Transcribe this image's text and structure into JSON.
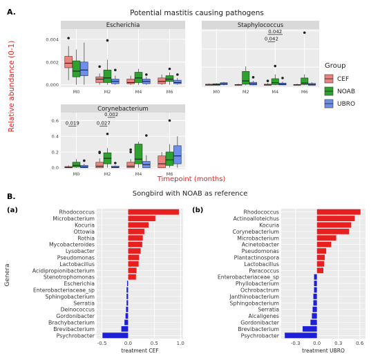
{
  "panel_a": {
    "label": "A.",
    "title": "Potential mastitis causing pathogens",
    "y_axis_label": "Relative abundance (0-1)",
    "x_axis_label": "Timepoint (months)",
    "legend": {
      "title": "Group",
      "items": [
        {
          "name": "CEF",
          "color": "#E8857E"
        },
        {
          "name": "NOAB",
          "color": "#2FA12F"
        },
        {
          "name": "UBRO",
          "color": "#6E8FE8"
        }
      ]
    }
  },
  "panel_b": {
    "label": "B.",
    "title": "Songbird with NOAB as reference",
    "y_axis_label": "Genera"
  },
  "chart_data": [
    {
      "type": "box",
      "title": "Escherichia",
      "categories": [
        "M0",
        "M2",
        "M4",
        "M6"
      ],
      "yticks": [
        "0.000",
        "0.002",
        "0.004"
      ],
      "ylim": [
        -0.0002,
        0.0049
      ],
      "groups": [
        "CEF",
        "NOAB",
        "UBRO"
      ],
      "boxes": [
        {
          "x": "M0",
          "group": "CEF",
          "q1": 0.0015,
          "median": 0.0019,
          "q3": 0.0025,
          "low": 0.0004,
          "high": 0.0034,
          "outliers": [
            0.0041
          ]
        },
        {
          "x": "M0",
          "group": "NOAB",
          "q1": 0.0007,
          "median": 0.0012,
          "q3": 0.0021,
          "low": 0.0,
          "high": 0.0031,
          "outliers": []
        },
        {
          "x": "M0",
          "group": "UBRO",
          "q1": 0.0008,
          "median": 0.0013,
          "q3": 0.002,
          "low": 0.0,
          "high": 0.0037,
          "outliers": []
        },
        {
          "x": "M2",
          "group": "CEF",
          "q1": 0.0002,
          "median": 0.0005,
          "q3": 0.0007,
          "low": 0.0,
          "high": 0.001,
          "outliers": [
            0.0016
          ]
        },
        {
          "x": "M2",
          "group": "NOAB",
          "q1": 0.0002,
          "median": 0.0006,
          "q3": 0.0013,
          "low": 0.0,
          "high": 0.0022,
          "outliers": [
            0.0039
          ]
        },
        {
          "x": "M2",
          "group": "UBRO",
          "q1": 0.0001,
          "median": 0.0003,
          "q3": 0.0005,
          "low": 0.0,
          "high": 0.0008,
          "outliers": [
            0.0013
          ]
        },
        {
          "x": "M4",
          "group": "CEF",
          "q1": 0.0001,
          "median": 0.0002,
          "q3": 0.0005,
          "low": 0.0,
          "high": 0.0008,
          "outliers": []
        },
        {
          "x": "M4",
          "group": "NOAB",
          "q1": 0.0002,
          "median": 0.0006,
          "q3": 0.0011,
          "low": 0.0,
          "high": 0.0014,
          "outliers": []
        },
        {
          "x": "M4",
          "group": "UBRO",
          "q1": 0.0001,
          "median": 0.0003,
          "q3": 0.0005,
          "low": 0.0,
          "high": 0.0007,
          "outliers": [
            0.0009
          ]
        },
        {
          "x": "M6",
          "group": "CEF",
          "q1": 0.0001,
          "median": 0.0003,
          "q3": 0.0006,
          "low": 0.0,
          "high": 0.0009,
          "outliers": []
        },
        {
          "x": "M6",
          "group": "NOAB",
          "q1": 0.0003,
          "median": 0.0005,
          "q3": 0.0008,
          "low": 0.0,
          "high": 0.0011,
          "outliers": [
            0.0014
          ]
        },
        {
          "x": "M6",
          "group": "UBRO",
          "q1": 0.0001,
          "median": 0.0002,
          "q3": 0.0004,
          "low": 0.0,
          "high": 0.0006,
          "outliers": [
            0.0009
          ]
        }
      ],
      "annotations": []
    },
    {
      "type": "box",
      "title": "Staphylococcus",
      "categories": [
        "M0",
        "M2",
        "M4",
        "M6"
      ],
      "yticks": [],
      "ylim": [
        -0.005,
        0.155
      ],
      "groups": [
        "CEF",
        "NOAB",
        "UBRO"
      ],
      "boxes": [
        {
          "x": "M0",
          "group": "CEF",
          "q1": 0.0,
          "median": 0.001,
          "q3": 0.003,
          "low": 0.0,
          "high": 0.005,
          "outliers": []
        },
        {
          "x": "M0",
          "group": "NOAB",
          "q1": 0.0,
          "median": 0.002,
          "q3": 0.004,
          "low": 0.0,
          "high": 0.006,
          "outliers": []
        },
        {
          "x": "M0",
          "group": "UBRO",
          "q1": 0.002,
          "median": 0.004,
          "q3": 0.007,
          "low": 0.0,
          "high": 0.009,
          "outliers": []
        },
        {
          "x": "M2",
          "group": "CEF",
          "q1": 0.0,
          "median": 0.001,
          "q3": 0.002,
          "low": 0.0,
          "high": 0.004,
          "outliers": []
        },
        {
          "x": "M2",
          "group": "NOAB",
          "q1": 0.003,
          "median": 0.012,
          "q3": 0.038,
          "low": 0.0,
          "high": 0.052,
          "outliers": []
        },
        {
          "x": "M2",
          "group": "UBRO",
          "q1": 0.001,
          "median": 0.004,
          "q3": 0.008,
          "low": 0.0,
          "high": 0.012,
          "outliers": [
            0.022
          ]
        },
        {
          "x": "M4",
          "group": "CEF",
          "q1": 0.0,
          "median": 0.001,
          "q3": 0.003,
          "low": 0.0,
          "high": 0.006,
          "outliers": [
            0.012
          ]
        },
        {
          "x": "M4",
          "group": "NOAB",
          "q1": 0.002,
          "median": 0.007,
          "q3": 0.018,
          "low": 0.0,
          "high": 0.03,
          "outliers": [
            0.053
          ]
        },
        {
          "x": "M4",
          "group": "UBRO",
          "q1": 0.001,
          "median": 0.003,
          "q3": 0.006,
          "low": 0.0,
          "high": 0.01,
          "outliers": [
            0.02
          ]
        },
        {
          "x": "M6",
          "group": "CEF",
          "q1": 0.0,
          "median": 0.001,
          "q3": 0.002,
          "low": 0.0,
          "high": 0.004,
          "outliers": []
        },
        {
          "x": "M6",
          "group": "NOAB",
          "q1": 0.002,
          "median": 0.006,
          "q3": 0.02,
          "low": 0.0,
          "high": 0.03,
          "outliers": [
            0.145
          ]
        },
        {
          "x": "M6",
          "group": "UBRO",
          "q1": 0.0,
          "median": 0.002,
          "q3": 0.005,
          "low": 0.0,
          "high": 0.008,
          "outliers": []
        }
      ],
      "annotations": [
        {
          "text": "0.042",
          "from": "M4:CEF",
          "to": "M4:UBRO",
          "level": 0.14
        },
        {
          "text": "0.042",
          "from": "M4:CEF",
          "to": "M4:NOAB",
          "level": 0.12
        }
      ]
    },
    {
      "type": "box",
      "title": "Corynebacterium",
      "categories": [
        "M0",
        "M2",
        "M4",
        "M6"
      ],
      "yticks": [
        "0.0",
        "0.2",
        "0.4",
        "0.6"
      ],
      "ylim": [
        -0.02,
        0.7
      ],
      "groups": [
        "CEF",
        "NOAB",
        "UBRO"
      ],
      "boxes": [
        {
          "x": "M0",
          "group": "CEF",
          "q1": 0.0,
          "median": 0.005,
          "q3": 0.015,
          "low": 0.0,
          "high": 0.03,
          "outliers": []
        },
        {
          "x": "M0",
          "group": "NOAB",
          "q1": 0.01,
          "median": 0.03,
          "q3": 0.07,
          "low": 0.0,
          "high": 0.11,
          "outliers": []
        },
        {
          "x": "M0",
          "group": "UBRO",
          "q1": 0.0,
          "median": 0.01,
          "q3": 0.03,
          "low": 0.0,
          "high": 0.05,
          "outliers": [
            0.09
          ]
        },
        {
          "x": "M2",
          "group": "CEF",
          "q1": 0.0,
          "median": 0.02,
          "q3": 0.07,
          "low": 0.0,
          "high": 0.12,
          "outliers": [
            0.19,
            0.2
          ]
        },
        {
          "x": "M2",
          "group": "NOAB",
          "q1": 0.05,
          "median": 0.12,
          "q3": 0.19,
          "low": 0.0,
          "high": 0.25,
          "outliers": [
            0.43
          ]
        },
        {
          "x": "M2",
          "group": "UBRO",
          "q1": 0.0,
          "median": 0.005,
          "q3": 0.02,
          "low": 0.0,
          "high": 0.03,
          "outliers": [
            0.06
          ]
        },
        {
          "x": "M4",
          "group": "CEF",
          "q1": 0.0,
          "median": 0.02,
          "q3": 0.07,
          "low": 0.0,
          "high": 0.11,
          "outliers": [
            0.2,
            0.23
          ]
        },
        {
          "x": "M4",
          "group": "NOAB",
          "q1": 0.05,
          "median": 0.11,
          "q3": 0.3,
          "low": 0.0,
          "high": 0.33,
          "outliers": []
        },
        {
          "x": "M4",
          "group": "UBRO",
          "q1": 0.0,
          "median": 0.04,
          "q3": 0.08,
          "low": 0.0,
          "high": 0.16,
          "outliers": [
            0.41
          ]
        },
        {
          "x": "M6",
          "group": "CEF",
          "q1": 0.0,
          "median": 0.05,
          "q3": 0.15,
          "low": 0.0,
          "high": 0.2,
          "outliers": []
        },
        {
          "x": "M6",
          "group": "NOAB",
          "q1": 0.03,
          "median": 0.1,
          "q3": 0.2,
          "low": 0.0,
          "high": 0.3,
          "outliers": [
            0.6
          ]
        },
        {
          "x": "M6",
          "group": "UBRO",
          "q1": 0.05,
          "median": 0.15,
          "q3": 0.28,
          "low": 0.0,
          "high": 0.4,
          "outliers": []
        }
      ],
      "annotations": [
        {
          "text": "0.019",
          "from": "M0:CEF",
          "to": "M0:NOAB",
          "level": 0.53
        },
        {
          "text": "0.027",
          "from": "M2:CEF",
          "to": "M2:NOAB",
          "level": 0.53
        },
        {
          "text": "0.002",
          "from": "M2:NOAB",
          "to": "M2:UBRO",
          "level": 0.64
        }
      ]
    },
    {
      "type": "bar",
      "orientation": "horizontal",
      "panel": "(a)",
      "xlabel": "treatment CEF",
      "xticks": [
        -0.5,
        0.0,
        0.5,
        1.0
      ],
      "xlim": [
        -0.6,
        1.05
      ],
      "categories": [
        "Rhodococcus",
        "Microbacterium",
        "Kocuria",
        "Ottowia",
        "Rothia",
        "Mycobacteroides",
        "Lysobacter",
        "Pseudomonas",
        "Lactobacillus",
        "Acidipropionibacterium",
        "Stenotrophomonas",
        "Escherichia",
        "Enterobacteriaceae_sp",
        "Sphingobacterium",
        "Serratia",
        "Deinococcus",
        "Gordonibacter",
        "Brachybacterium",
        "Brevibacterium",
        "Psychrobacter"
      ],
      "values": [
        0.97,
        0.52,
        0.39,
        0.31,
        0.28,
        0.27,
        0.24,
        0.21,
        0.2,
        0.16,
        0.15,
        -0.02,
        -0.03,
        -0.03,
        -0.03,
        -0.04,
        -0.05,
        -0.07,
        -0.13,
        -0.49
      ],
      "colors": {
        "positive": "#E81F1F",
        "negative": "#1F1FD6"
      }
    },
    {
      "type": "bar",
      "orientation": "horizontal",
      "panel": "(b)",
      "xlabel": "treatment UBRO",
      "xticks": [
        -0.3,
        0.0,
        0.3,
        0.6
      ],
      "xlim": [
        -0.5,
        0.68
      ],
      "categories": [
        "Rhodococcus",
        "Actinoalloteichus",
        "Kocuria",
        "Corynebacterium",
        "Microbacterium",
        "Acinetobacter",
        "Pseudomonas",
        "Plantactinospora",
        "Lactobacillus",
        "Paracoccus",
        "Enterobacteriaceae_sp",
        "Phyllobacterium",
        "Ochrobactrum",
        "Janthinobacterium",
        "Sphingobacterium",
        "Serratia",
        "Alcaligenes",
        "Gordonibacter",
        "Brevibacterium",
        "Psychrobacter"
      ],
      "values": [
        0.61,
        0.53,
        0.48,
        0.45,
        0.27,
        0.2,
        0.13,
        0.11,
        0.1,
        0.09,
        -0.04,
        -0.04,
        -0.04,
        -0.05,
        -0.05,
        -0.06,
        -0.07,
        -0.09,
        -0.2,
        -0.45
      ],
      "colors": {
        "positive": "#E81F1F",
        "negative": "#1F1FD6"
      }
    }
  ]
}
